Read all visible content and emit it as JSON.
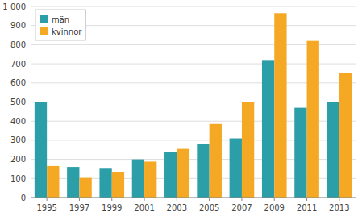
{
  "chart_data": {
    "type": "bar",
    "categories": [
      "1995",
      "1997",
      "1999",
      "2001",
      "2003",
      "2005",
      "2007",
      "2009",
      "2011",
      "2013"
    ],
    "series": [
      {
        "name": "män",
        "color": "#2B9EA8",
        "values": [
          500,
          160,
          155,
          200,
          240,
          280,
          310,
          720,
          470,
          500
        ]
      },
      {
        "name": "kvinnor",
        "color": "#F5A823",
        "values": [
          165,
          103,
          135,
          188,
          255,
          385,
          500,
          965,
          820,
          650
        ]
      }
    ],
    "ylim": [
      0,
      1000
    ],
    "yticks": [
      0,
      100,
      200,
      300,
      400,
      500,
      600,
      700,
      800,
      900,
      {
        "value": 1000,
        "label": "1 000"
      }
    ],
    "grid": true,
    "legend": "upper left"
  }
}
